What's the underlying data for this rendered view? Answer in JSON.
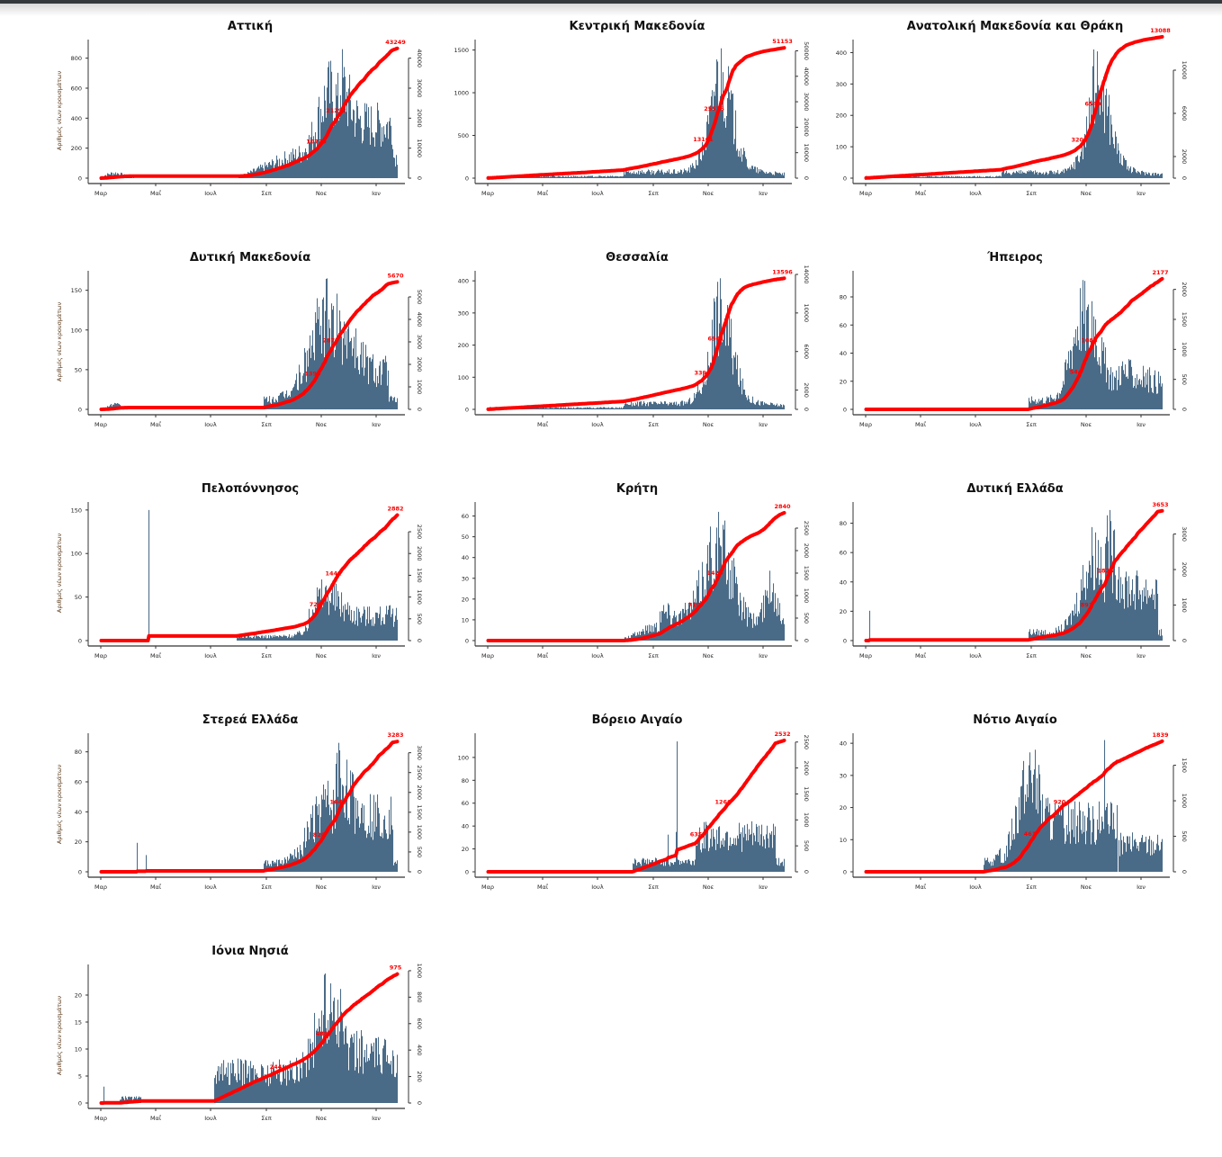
{
  "page": {
    "y_axis_label": "Αριθμός νέων κρουσμάτων",
    "months": [
      "Μαρ",
      "Μαΐ",
      "Ιουλ",
      "Σεπ",
      "Νοε",
      "Ιαν"
    ],
    "colors": {
      "bars": "#4a6b87",
      "cumulative_line": "#ff0000",
      "axis": "#333333"
    }
  },
  "chart_data": [
    {
      "type": "bar",
      "title": "Αττική",
      "ylabel": "Αριθμός νέων κρουσμάτων",
      "ylim": [
        0,
        900
      ],
      "y_ticks": [
        0,
        200,
        400,
        600,
        800
      ],
      "y2lim": [
        0,
        45000
      ],
      "y2_ticks": [
        0,
        10000,
        20000,
        30000,
        40000
      ],
      "x_ticks": [
        "Μαρ",
        "Μαΐ",
        "Ιουλ",
        "Σεπ",
        "Νοε",
        "Ιαν"
      ],
      "show_mar": true,
      "peak_daily": 860,
      "total": 43249,
      "mid_labels": [
        "10770",
        "21292"
      ],
      "profile": "attica"
    },
    {
      "type": "bar",
      "title": "Κεντρική Μακεδονία",
      "ylabel": "",
      "ylim": [
        0,
        1580
      ],
      "y_ticks": [
        0,
        500,
        1000,
        1500
      ],
      "y2lim": [
        0,
        53000
      ],
      "y2_ticks": [
        0,
        10000,
        20000,
        30000,
        40000,
        50000
      ],
      "x_ticks": [
        "Μαρ",
        "Μαΐ",
        "Ιουλ",
        "Σεπ",
        "Νοε",
        "Ιαν"
      ],
      "show_mar": true,
      "peak_daily": 1520,
      "total": 51153,
      "mid_labels": [
        "13161",
        "25576"
      ],
      "profile": "north_peak"
    },
    {
      "type": "bar",
      "title": "Ανατολική Μακεδονία και Θράκη",
      "ylabel": "",
      "ylim": [
        0,
        430
      ],
      "y_ticks": [
        0,
        100,
        200,
        300,
        400
      ],
      "y2lim": [
        0,
        12500
      ],
      "y2_ticks": [
        0,
        2000,
        6000,
        10000
      ],
      "x_ticks": [
        "Μαρ",
        "Μαΐ",
        "Ιουλ",
        "Σεπ",
        "Νοε",
        "Ιαν"
      ],
      "show_mar": true,
      "peak_daily": 410,
      "total": 13088,
      "mid_labels": [
        "3203",
        "6540"
      ],
      "profile": "north_peak"
    },
    {
      "type": "bar",
      "title": "Δυτική Μακεδονία",
      "ylabel": "Αριθμός νέων κρουσμάτων",
      "ylim": [
        0,
        170
      ],
      "y_ticks": [
        0,
        50,
        100,
        150
      ],
      "y2lim": [
        0,
        6000
      ],
      "y2_ticks": [
        0,
        1000,
        2000,
        3000,
        4000,
        5000
      ],
      "x_ticks": [
        "Μαρ",
        "Μαΐ",
        "Ιουλ",
        "Σεπ",
        "Νοε",
        "Ιαν"
      ],
      "show_mar": true,
      "peak_daily": 165,
      "total": 5670,
      "mid_labels": [
        "1390",
        "2870"
      ],
      "profile": "west_mac"
    },
    {
      "type": "bar",
      "title": "Θεσσαλία",
      "ylabel": "",
      "ylim": [
        0,
        420
      ],
      "y_ticks": [
        0,
        100,
        200,
        300,
        400
      ],
      "y2lim": [
        0,
        14000
      ],
      "y2_ticks": [
        0,
        2000,
        6000,
        10000,
        14000
      ],
      "x_ticks": [
        "Μαΐ",
        "Ιουλ",
        "Σεπ",
        "Νοε",
        "Ιαν"
      ],
      "show_mar": false,
      "peak_daily": 408,
      "total": 13596,
      "mid_labels": [
        "3398",
        "6961"
      ],
      "profile": "north_peak"
    },
    {
      "type": "bar",
      "title": "Ήπειρος",
      "ylabel": "",
      "ylim": [
        0,
        96
      ],
      "y_ticks": [
        0,
        20,
        40,
        60,
        80
      ],
      "y2lim": [
        0,
        2250
      ],
      "y2_ticks": [
        0,
        500,
        1000,
        1500,
        2000
      ],
      "x_ticks": [
        "Μαρ",
        "Μαΐ",
        "Ιουλ",
        "Σεπ",
        "Νοε",
        "Ιαν"
      ],
      "show_mar": true,
      "peak_daily": 92,
      "total": 2177,
      "mid_labels": [
        "544",
        "1088"
      ],
      "profile": "epirus"
    },
    {
      "type": "bar",
      "title": "Πελοπόννησος",
      "ylabel": "Αριθμός νέων κρουσμάτων",
      "ylim": [
        0,
        155
      ],
      "y_ticks": [
        0,
        50,
        100,
        150
      ],
      "y2lim": [
        0,
        3100
      ],
      "y2_ticks": [
        0,
        500,
        1000,
        1500,
        2000,
        2500
      ],
      "x_ticks": [
        "Μαρ",
        "Μαΐ",
        "Ιουλ",
        "Σεπ",
        "Νοε",
        "Ιαν"
      ],
      "show_mar": true,
      "peak_daily": 150,
      "total": 2882,
      "mid_labels": [
        "720",
        "1441"
      ],
      "profile": "pelop"
    },
    {
      "type": "bar",
      "title": "Κρήτη",
      "ylabel": "",
      "ylim": [
        0,
        65
      ],
      "y_ticks": [
        0,
        10,
        20,
        30,
        40,
        50,
        60
      ],
      "y2lim": [
        0,
        3000
      ],
      "y2_ticks": [
        0,
        500,
        1000,
        1500,
        2000,
        2500
      ],
      "x_ticks": [
        "Μαρ",
        "Μαΐ",
        "Ιουλ",
        "Σεπ",
        "Νοε",
        "Ιαν"
      ],
      "show_mar": true,
      "peak_daily": 62,
      "total": 2840,
      "mid_labels": [
        "710",
        "1420"
      ],
      "profile": "crete"
    },
    {
      "type": "bar",
      "title": "Δυτική Ελλάδα",
      "ylabel": "",
      "ylim": [
        0,
        92
      ],
      "y_ticks": [
        0,
        20,
        40,
        60,
        80
      ],
      "y2lim": [
        0,
        3800
      ],
      "y2_ticks": [
        0,
        1000,
        2000,
        3000
      ],
      "x_ticks": [
        "Μαρ",
        "Μαΐ",
        "Ιουλ",
        "Σεπ",
        "Νοε",
        "Ιαν"
      ],
      "show_mar": true,
      "peak_daily": 89,
      "total": 3653,
      "mid_labels": [
        "891",
        "1826"
      ],
      "profile": "west_gr"
    },
    {
      "type": "bar",
      "title": "Στερεά Ελλάδα",
      "ylabel": "Αριθμός νέων κρουσμάτων",
      "ylim": [
        0,
        90
      ],
      "y_ticks": [
        0,
        20,
        40,
        60,
        80
      ],
      "y2lim": [
        0,
        3400
      ],
      "y2_ticks": [
        0,
        500,
        1000,
        1500,
        2000,
        2500,
        3000
      ],
      "x_ticks": [
        "Μαρ",
        "Μαΐ",
        "Ιουλ",
        "Σεπ",
        "Νοε",
        "Ιαν"
      ],
      "show_mar": true,
      "peak_daily": 86,
      "total": 3283,
      "mid_labels": [
        "820",
        "1641"
      ],
      "profile": "sterea"
    },
    {
      "type": "bar",
      "title": "Βόρειο Αιγαίο",
      "ylabel": "",
      "ylim": [
        0,
        118
      ],
      "y_ticks": [
        0,
        20,
        40,
        60,
        80,
        100
      ],
      "y2lim": [
        0,
        2600
      ],
      "y2_ticks": [
        0,
        500,
        1000,
        1500,
        2000,
        2500
      ],
      "x_ticks": [
        "Μαρ",
        "Μαΐ",
        "Ιουλ",
        "Σεπ",
        "Νοε",
        "Ιαν"
      ],
      "show_mar": true,
      "peak_daily": 114,
      "total": 2532,
      "mid_labels": [
        "635",
        "1266"
      ],
      "profile": "n_aegean"
    },
    {
      "type": "bar",
      "title": "Νότιο Αιγαίο",
      "ylabel": "",
      "ylim": [
        0,
        42
      ],
      "y_ticks": [
        0,
        10,
        20,
        30,
        40
      ],
      "y2lim": [
        0,
        1900
      ],
      "y2_ticks": [
        0,
        500,
        1000,
        1500
      ],
      "x_ticks": [
        "Μαΐ",
        "Ιουλ",
        "Σεπ",
        "Νοε",
        "Ιαν"
      ],
      "show_mar": false,
      "peak_daily": 41,
      "total": 1839,
      "mid_labels": [
        "461",
        "920"
      ],
      "profile": "s_aegean"
    },
    {
      "type": "bar",
      "title": "Ιόνια Νησιά",
      "ylabel": "Αριθμός νέων κρουσμάτων",
      "ylim": [
        0,
        25
      ],
      "y_ticks": [
        0,
        5,
        10,
        15,
        20
      ],
      "y2lim": [
        0,
        1020
      ],
      "y2_ticks": [
        0,
        200,
        400,
        600,
        800,
        1000
      ],
      "x_ticks": [
        "Μαρ",
        "Μαΐ",
        "Ιουλ",
        "Σεπ",
        "Νοε",
        "Ιαν"
      ],
      "show_mar": true,
      "peak_daily": 24,
      "total": 975,
      "mid_labels": [
        "244",
        "488"
      ],
      "profile": "ionian"
    }
  ]
}
